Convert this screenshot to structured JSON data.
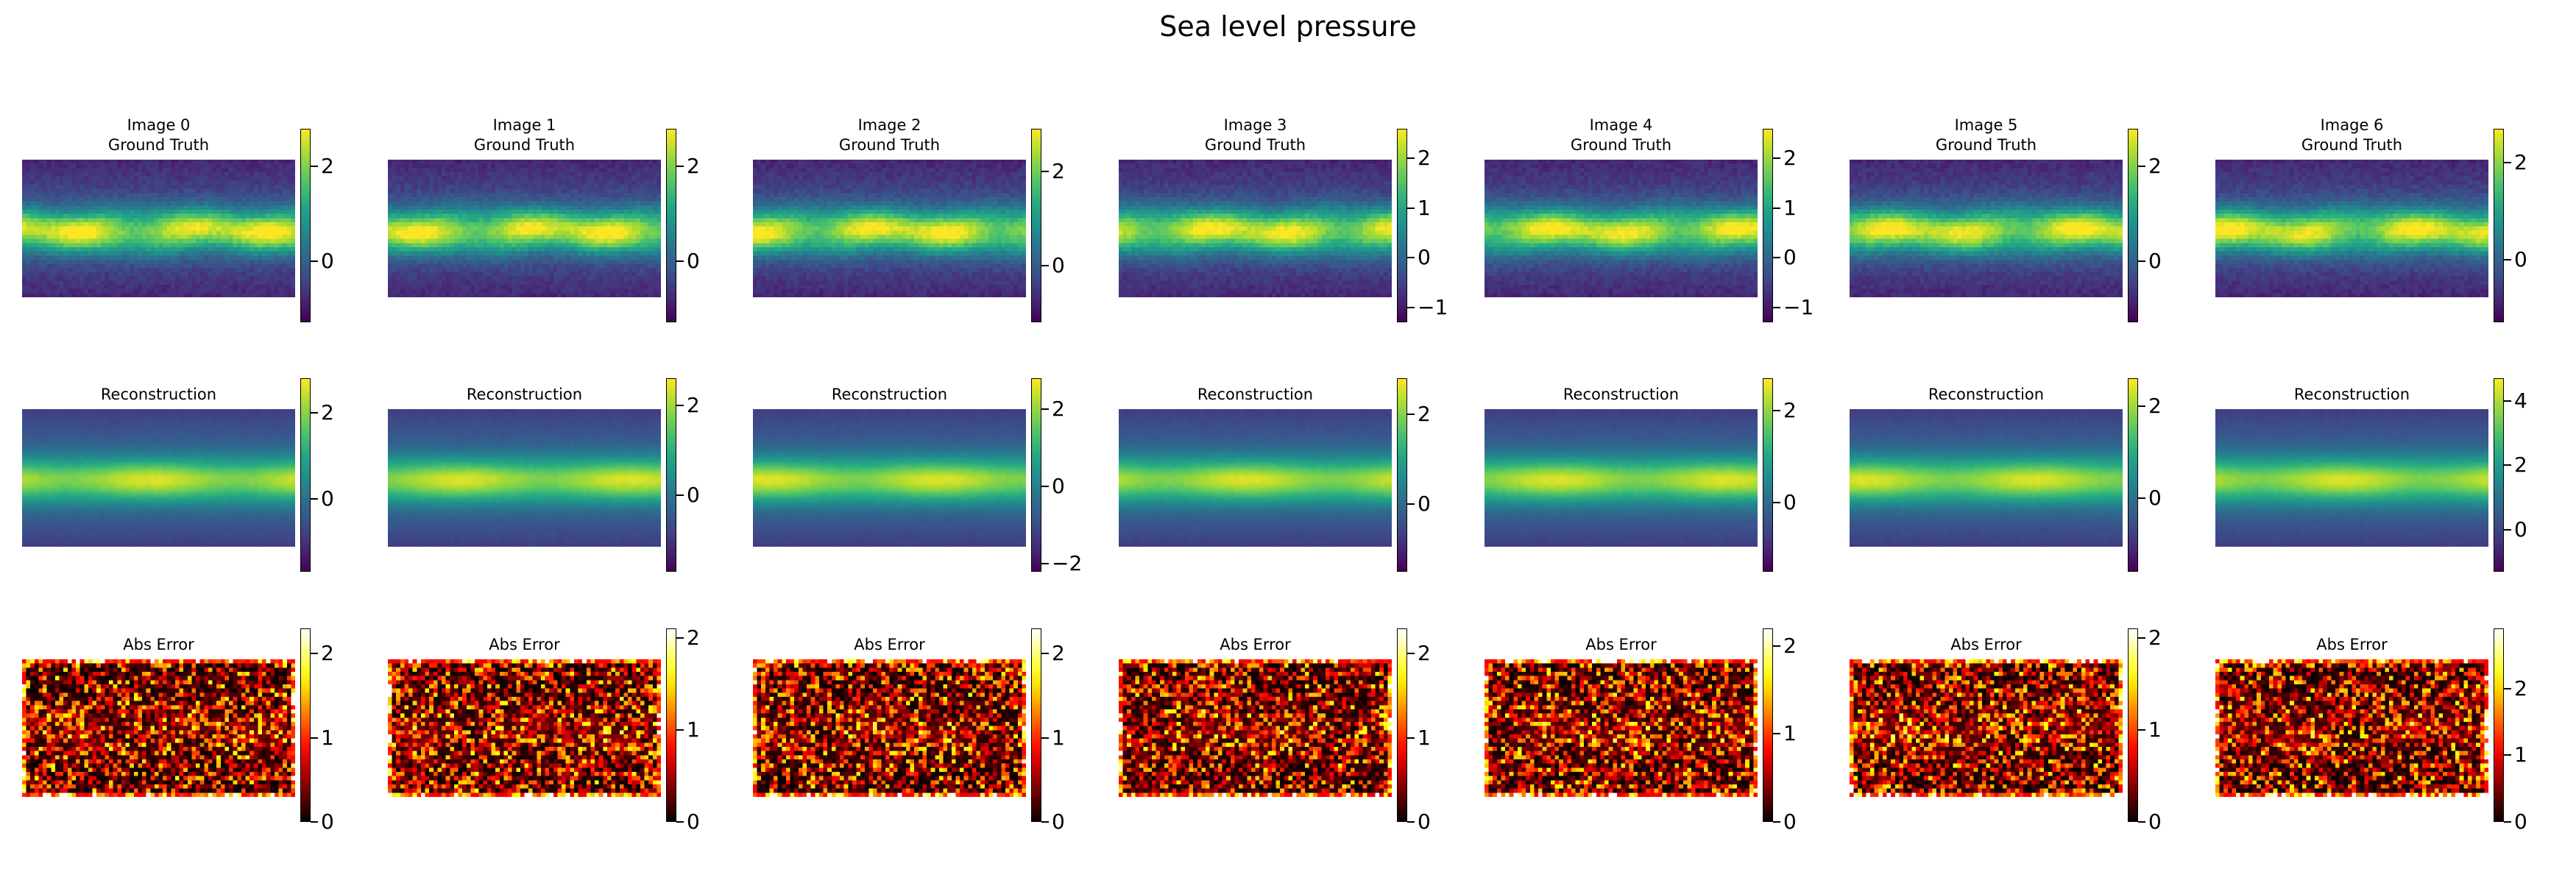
{
  "chart_data": {
    "type": "heatmap",
    "title": "Sea level pressure",
    "columns": [
      "Image 0",
      "Image 1",
      "Image 2",
      "Image 3",
      "Image 4",
      "Image 5",
      "Image 6"
    ],
    "rows": [
      {
        "key": "gt",
        "title": "Ground Truth",
        "colormap": "viridis",
        "clim": [
          [
            -1.3,
            2.8
          ],
          [
            -1.3,
            2.8
          ],
          [
            -1.2,
            2.9
          ],
          [
            -1.3,
            2.6
          ],
          [
            -1.3,
            2.6
          ],
          [
            -1.3,
            2.8
          ],
          [
            -1.3,
            2.7
          ]
        ],
        "ticks": [
          [
            0,
            2
          ],
          [
            0,
            2
          ],
          [
            0,
            2
          ],
          [
            -1,
            0,
            1,
            2
          ],
          [
            -1,
            0,
            1,
            2
          ],
          [
            0,
            2
          ],
          [
            0,
            2
          ]
        ]
      },
      {
        "key": "rec",
        "title": "Reconstruction",
        "colormap": "viridis",
        "clim": [
          [
            -1.7,
            2.8
          ],
          [
            -1.7,
            2.6
          ],
          [
            -2.2,
            2.8
          ],
          [
            -1.5,
            2.8
          ],
          [
            -1.5,
            2.7
          ],
          [
            -1.6,
            2.6
          ],
          [
            -1.3,
            4.7
          ]
        ],
        "ticks": [
          [
            0,
            2
          ],
          [
            0,
            2
          ],
          [
            -2,
            0,
            2
          ],
          [
            0,
            2
          ],
          [
            0,
            2
          ],
          [
            0,
            2
          ],
          [
            0,
            2,
            4
          ]
        ]
      },
      {
        "key": "err",
        "title": "Abs Error",
        "colormap": "hot",
        "clim": [
          [
            0,
            2.3
          ],
          [
            0,
            2.1
          ],
          [
            0,
            2.3
          ],
          [
            0,
            2.3
          ],
          [
            0,
            2.2
          ],
          [
            0,
            2.1
          ],
          [
            0,
            2.9
          ]
        ],
        "ticks": [
          [
            0,
            1,
            2
          ],
          [
            0,
            1,
            2
          ],
          [
            0,
            1,
            2
          ],
          [
            0,
            1,
            2
          ],
          [
            0,
            1,
            2
          ],
          [
            0,
            1,
            2
          ],
          [
            0,
            1,
            2
          ]
        ]
      }
    ]
  }
}
